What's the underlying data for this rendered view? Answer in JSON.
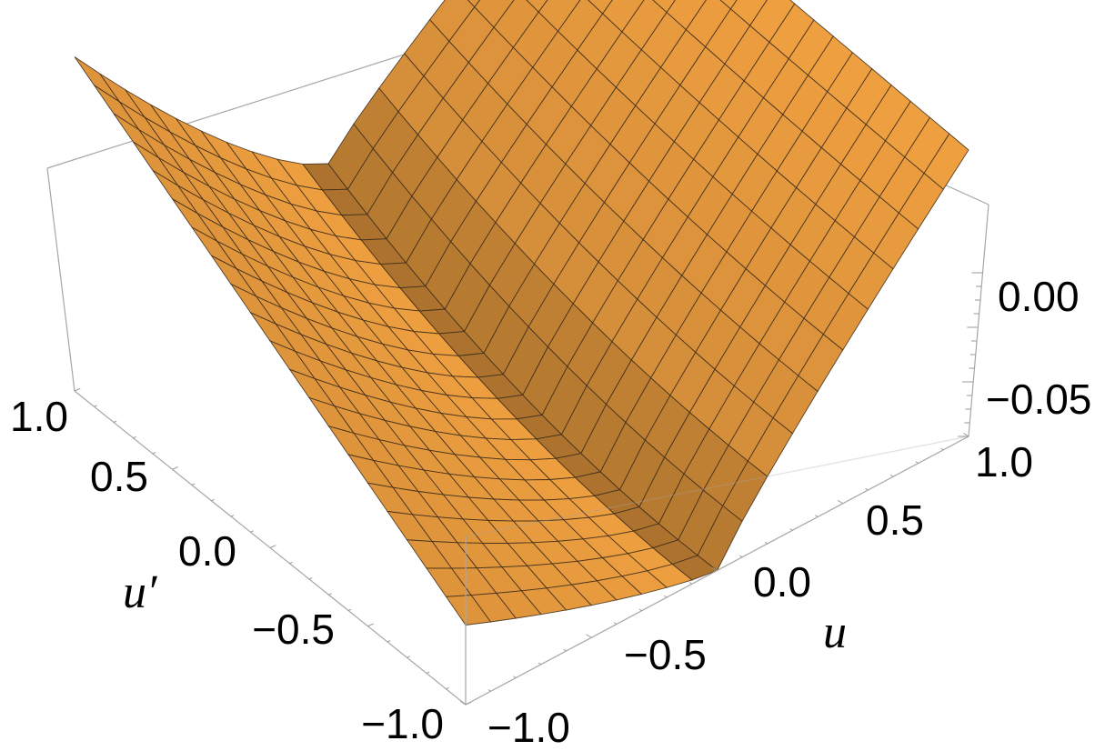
{
  "chart_data": {
    "type": "surface3d",
    "xlabel": "u",
    "ylabel": "u′",
    "zlabel": "",
    "xlim": [
      -1.0,
      1.0
    ],
    "ylim": [
      -1.0,
      1.0
    ],
    "zlim": [
      -0.08,
      0.03
    ],
    "x_ticks": [
      "−1.0",
      "−0.5",
      "0.0",
      "0.5",
      "1.0"
    ],
    "y_ticks": [
      "−1.0",
      "−0.5",
      "0.0",
      "0.5",
      "1.0"
    ],
    "z_ticks": [
      "−0.05",
      "0.00"
    ],
    "surface_color": "#f0a040",
    "grid_resolution": 20,
    "corner_values": [
      {
        "u": -1.0,
        "u_prime": -1.0,
        "z": -0.055
      },
      {
        "u": 1.0,
        "u_prime": -1.0,
        "z": 0.01
      },
      {
        "u": -1.0,
        "u_prime": 1.0,
        "z": 0.025
      },
      {
        "u": 1.0,
        "u_prime": 1.0,
        "z": 0.025
      }
    ],
    "valley_value": {
      "u": 0.0,
      "u_prime": -1.0,
      "z": -0.08
    }
  }
}
